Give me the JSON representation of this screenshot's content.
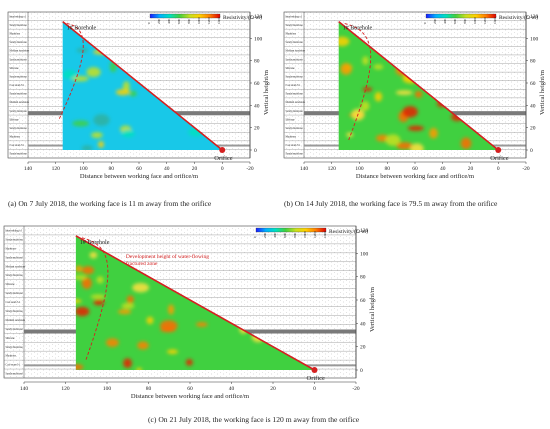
{
  "figure": {
    "panels": [
      {
        "id": "a",
        "caption": "(a) On 7 July 2018, the working face is  11 m away from the orifice",
        "colorbar_title": "Resistivity/(Ω·m)",
        "colorbar_ticks": [
          "0",
          "200",
          "400",
          "600",
          "800",
          "1000",
          "1200",
          "1400"
        ],
        "borehole_label": "1# Borehole",
        "orifice_label": "Orifice",
        "xlabel": "Distance between working face and orifice/m",
        "ylabel": "Vertical height/m",
        "x_ticks": [
          "140",
          "120",
          "100",
          "80",
          "60",
          "40",
          "20",
          "0",
          "-20"
        ],
        "y_ticks": [
          "0",
          "20",
          "40",
          "60",
          "80",
          "100",
          "120"
        ],
        "working_face_distance": 11,
        "strata_labels": [
          "Interbedding of sandy mudstone and mudstone",
          "Sandy mudstone",
          "Mudstone",
          "Sandy mudstone",
          "Medium sandstone",
          "Sandy mudstone",
          "Siltstone",
          "Sandy mudstone",
          "Coal seam 3-1",
          "Sandy mudstone",
          "Medium sandstone",
          "Sandy mudstone",
          "Siltstone",
          "Sandy mudstone",
          "Mudstone",
          "Coal seam 3-1",
          "Sandy mudstone"
        ]
      },
      {
        "id": "b",
        "caption": "(b) On 14 July 2018, the working face is  79.5 m away from the orifice",
        "colorbar_title": "Resistivity/(Ω·m)",
        "colorbar_ticks": [
          "0",
          "200",
          "400",
          "600",
          "800",
          "1000",
          "1200",
          "1400"
        ],
        "borehole_label": "1# Borehole",
        "orifice_label": "Orifice",
        "xlabel": "Distance between working face and orifice/m",
        "ylabel": "Vertical height/m",
        "x_ticks": [
          "140",
          "120",
          "100",
          "80",
          "60",
          "40",
          "20",
          "0",
          "-20"
        ],
        "y_ticks": [
          "0",
          "20",
          "40",
          "60",
          "80",
          "100",
          "120"
        ],
        "working_face_distance": 79.5,
        "strata_labels": [
          "Interbedding of sandy mudstone and mudstone",
          "Sandy mudstone",
          "Mudstone",
          "Sandy mudstone",
          "Medium sandstone",
          "Sandy mudstone",
          "Siltstone",
          "Sandy mudstone",
          "Coal seam 3-1",
          "Sandy mudstone",
          "Medium sandstone",
          "Sandy mudstone",
          "Siltstone",
          "Sandy mudstone",
          "Mudstone",
          "Coal seam 3-1",
          "Sandy mudstone"
        ]
      },
      {
        "id": "c",
        "caption": "(c) On 21 July 2018, the working face is  120 m away from the orifice",
        "colorbar_title": "Resistivity/(Ω·m)",
        "colorbar_ticks": [
          "0",
          "200",
          "400",
          "600",
          "800",
          "1000",
          "1200",
          "1400"
        ],
        "borehole_label": "1# Borehole",
        "orifice_label": "Orifice",
        "annotation": "Development height of water-flowing fractured zone",
        "xlabel": "Distance between working face and orifice/m",
        "ylabel": "Vertical height/m",
        "x_ticks": [
          "140",
          "120",
          "100",
          "80",
          "60",
          "40",
          "20",
          "0",
          "-20"
        ],
        "y_ticks": [
          "0",
          "20",
          "40",
          "60",
          "80",
          "100",
          "120"
        ],
        "working_face_distance": 120,
        "strata_labels": [
          "Interbedding of sandy mudstone and mudstone",
          "Sandy mudstone",
          "Mudstone",
          "Sandy mudstone",
          "Medium sandstone",
          "Sandy mudstone",
          "Siltstone",
          "Sandy mudstone",
          "Coal seam 3-1",
          "Sandy mudstone",
          "Medium sandstone",
          "Sandy mudstone",
          "Siltstone",
          "Sandy mudstone",
          "Mudstone",
          "Coal seam 3-1",
          "Sandy mudstone"
        ]
      }
    ],
    "colors": {
      "triangle_edge": "#d42020",
      "annotation": "#d42020",
      "coal_band": "#7a7a7a",
      "scale": [
        "#1a1aff",
        "#00b0ff",
        "#00e0c0",
        "#40d040",
        "#c8e020",
        "#ffd000",
        "#ff8000",
        "#e00000"
      ]
    }
  }
}
